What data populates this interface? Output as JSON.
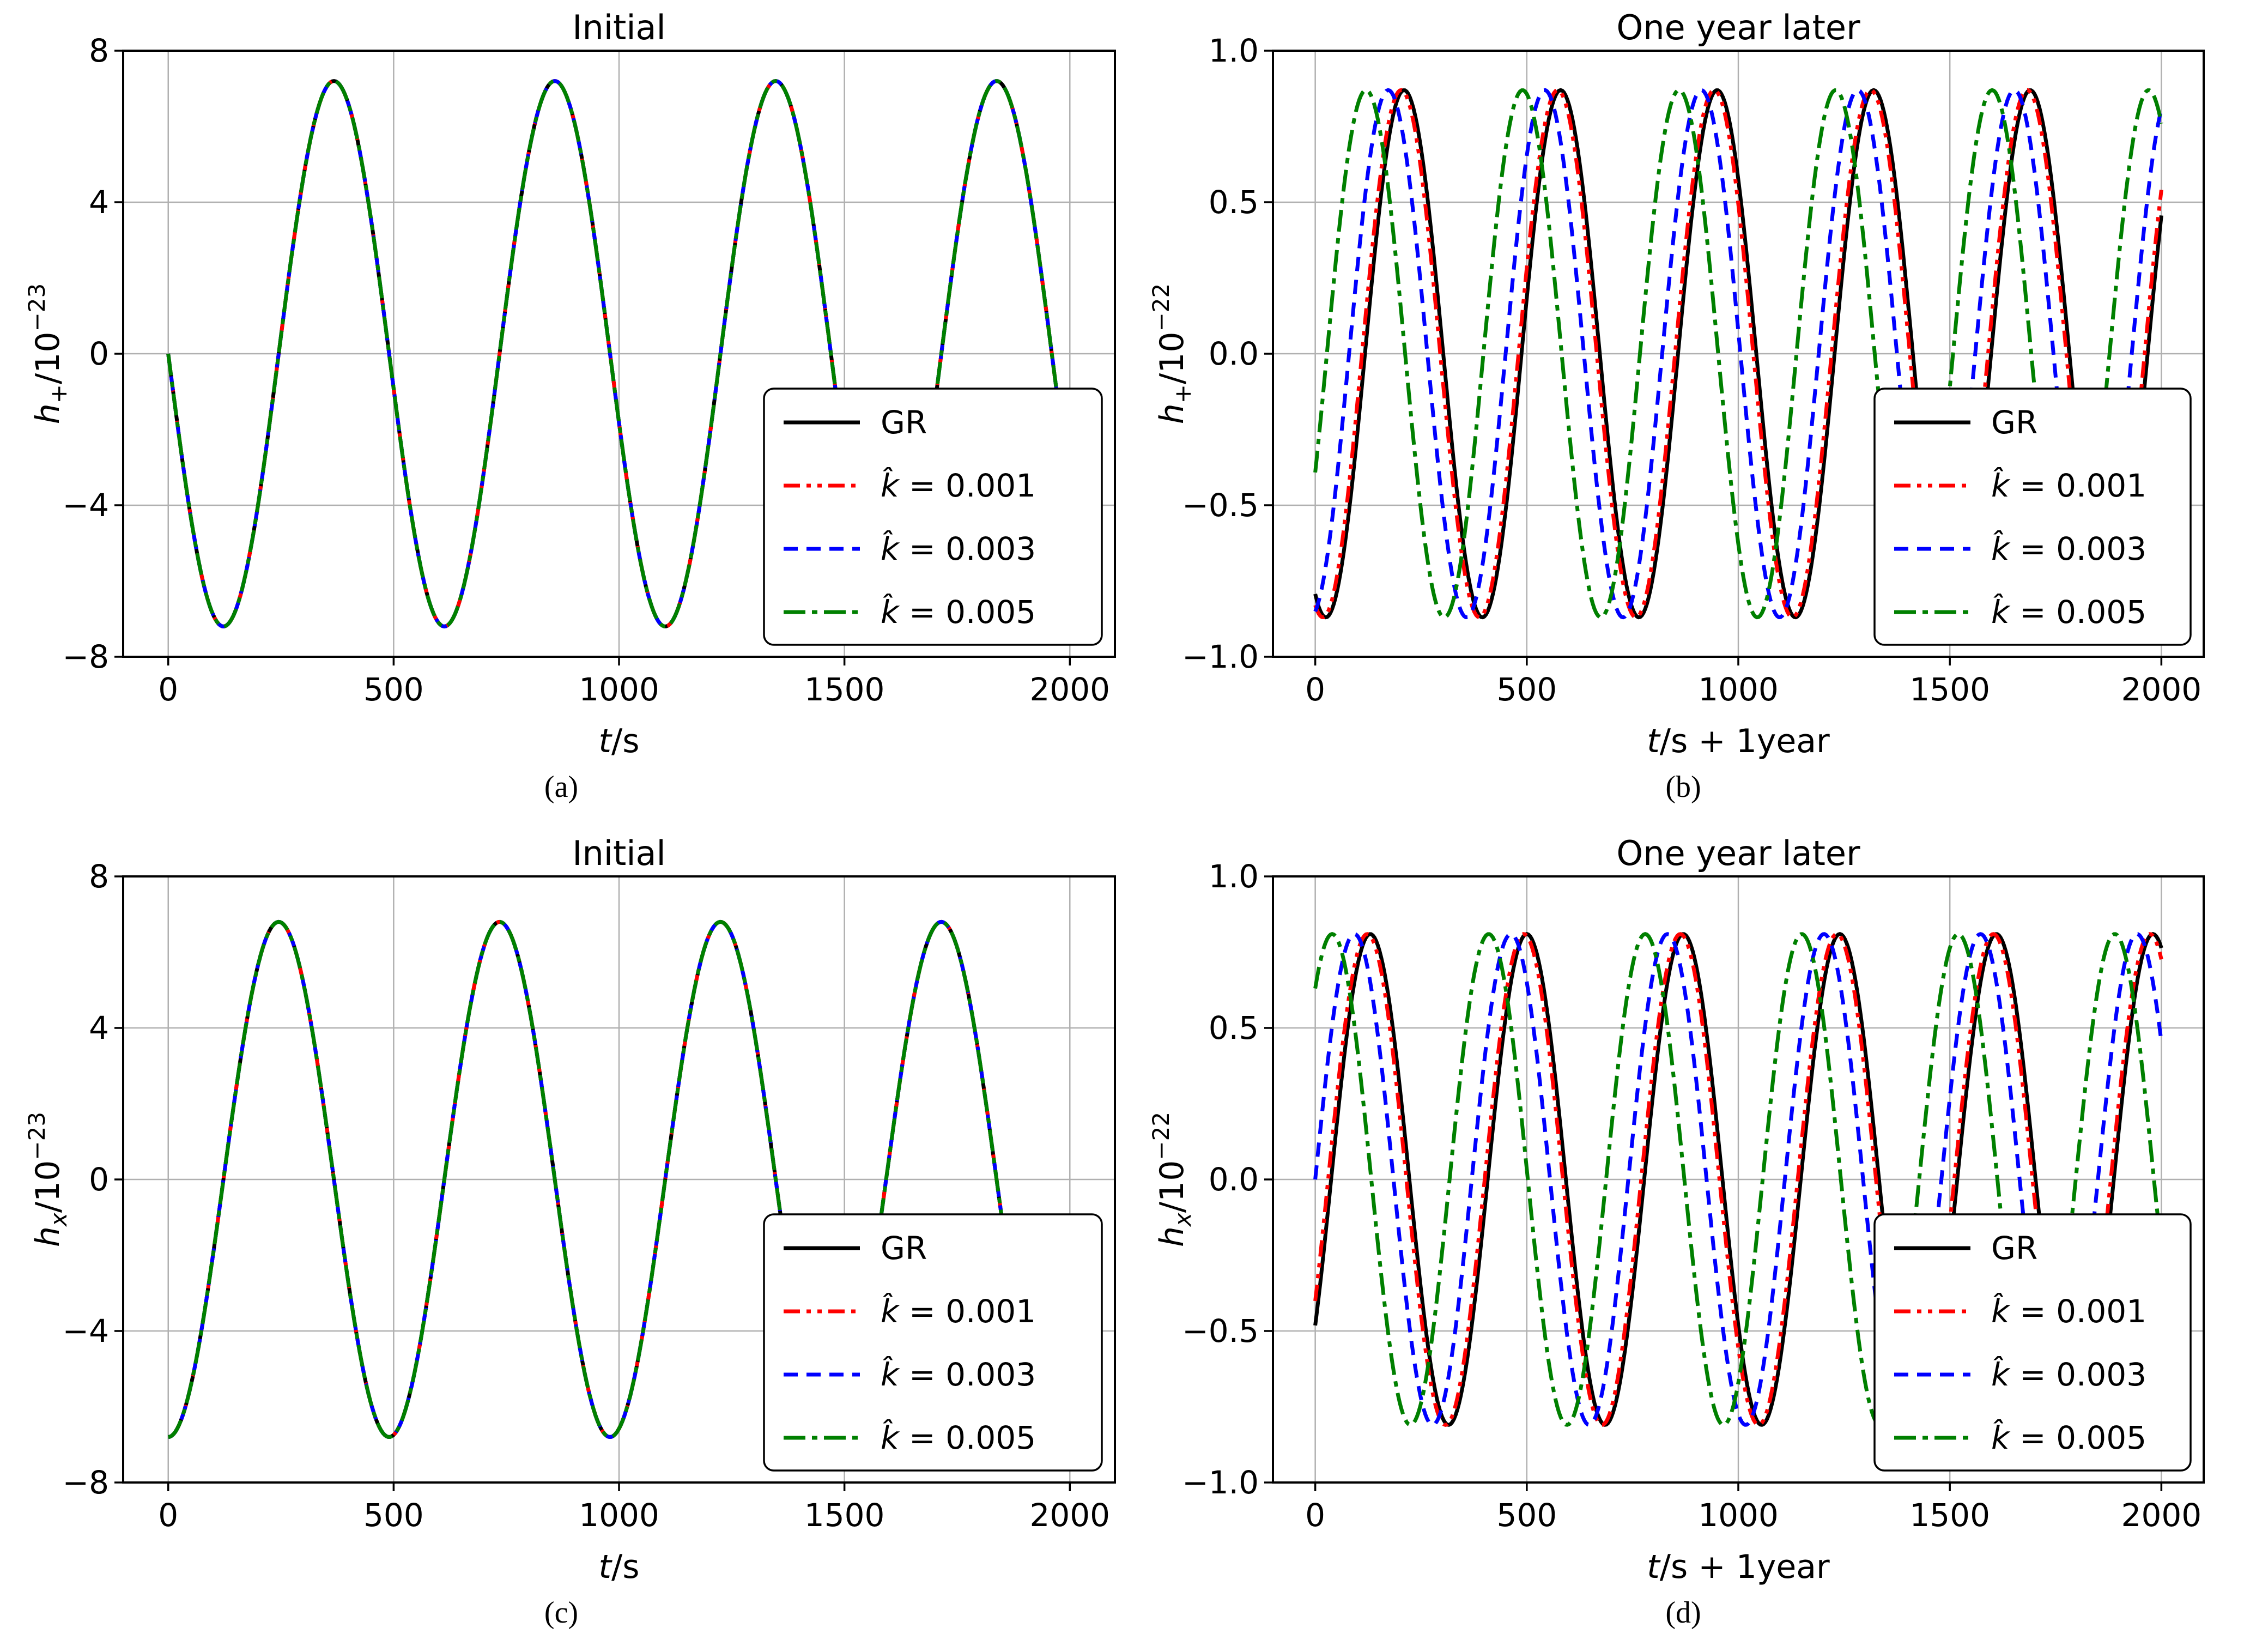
{
  "figure": {
    "background": "#ffffff",
    "text_color": "#000000",
    "grid_color": "#b0b0b0",
    "spine_color": "#000000",
    "legend_border_color": "#000000",
    "legend_background": "#ffffff"
  },
  "chart_data": [
    {
      "id": "a",
      "type": "line",
      "title": "Initial",
      "caption": "(a)",
      "xlabel": {
        "var": "t",
        "rest": "/s"
      },
      "ylabel": {
        "var": "h",
        "sub": "+",
        "rest": "/10",
        "sup": "−23"
      },
      "xlim": [
        -100,
        2100
      ],
      "ylim": [
        -8,
        8
      ],
      "xticks": [
        0,
        500,
        1000,
        1500,
        2000
      ],
      "xtick_labels": [
        "0",
        "500",
        "1000",
        "1500",
        "2000"
      ],
      "yticks": [
        8,
        4,
        0,
        -4,
        -8
      ],
      "ytick_labels": [
        "8",
        "4",
        "0",
        "−4",
        "−8"
      ],
      "grid": true,
      "legend_position": "lower right",
      "waveform": "h(t) = A·sin(2π(t−t0)/T), t ∈ [0, 2000] s; all four curves overlap",
      "series": [
        {
          "name": "GR",
          "color": "#000000",
          "linestyle": "solid",
          "dash": [],
          "amplitude": 7.2,
          "period_s": 490,
          "t0_s": 245
        },
        {
          "name": "k̂ = 0.001",
          "color": "#ff0000",
          "linestyle": "dash-dot-dot",
          "dash": [
            30,
            12,
            8,
            12,
            8,
            12
          ],
          "amplitude": 7.2,
          "period_s": 490,
          "t0_s": 245
        },
        {
          "name": "k̂ = 0.003",
          "color": "#0000ff",
          "linestyle": "dashed",
          "dash": [
            26,
            16
          ],
          "amplitude": 7.2,
          "period_s": 490,
          "t0_s": 245
        },
        {
          "name": "k̂ = 0.005",
          "color": "#008000",
          "linestyle": "dash-dot",
          "dash": [
            40,
            12,
            10,
            12
          ],
          "amplitude": 7.2,
          "period_s": 490,
          "t0_s": 245
        }
      ]
    },
    {
      "id": "b",
      "type": "line",
      "title": "One year later",
      "caption": "(b)",
      "xlabel": {
        "var": "t",
        "rest": "/s + 1year"
      },
      "ylabel": {
        "var": "h",
        "sub": "+",
        "rest": "/10",
        "sup": "−22"
      },
      "xlim": [
        -100,
        2100
      ],
      "ylim": [
        -1,
        1
      ],
      "xticks": [
        0,
        500,
        1000,
        1500,
        2000
      ],
      "xtick_labels": [
        "0",
        "500",
        "1000",
        "1500",
        "2000"
      ],
      "yticks": [
        1.0,
        0.5,
        0.0,
        -0.5,
        -1.0
      ],
      "ytick_labels": [
        "1.0",
        "0.5",
        "0.0",
        "−0.5",
        "−1.0"
      ],
      "grid": true,
      "legend_position": "lower right",
      "waveform": "h(t) = A·sin(2π(t−t0)/T), t ∈ [0, 2000] s; dephased curves, k̂ = 0.005 leads most",
      "series": [
        {
          "name": "GR",
          "color": "#000000",
          "linestyle": "solid",
          "dash": [],
          "amplitude": 0.87,
          "period_s": 370,
          "t0_s": 117.5
        },
        {
          "name": "k̂ = 0.001",
          "color": "#ff0000",
          "linestyle": "dash-dot-dot",
          "dash": [
            30,
            12,
            8,
            12,
            8,
            12
          ],
          "amplitude": 0.87,
          "period_s": 370,
          "t0_s": 110.5
        },
        {
          "name": "k̂ = 0.003",
          "color": "#0000ff",
          "linestyle": "dashed",
          "dash": [
            26,
            16
          ],
          "amplitude": 0.87,
          "period_s": 370,
          "t0_s": 80
        },
        {
          "name": "k̂ = 0.005",
          "color": "#008000",
          "linestyle": "dash-dot",
          "dash": [
            40,
            12,
            10,
            12
          ],
          "amplitude": 0.87,
          "period_s": 370,
          "t0_s": 27.5
        }
      ]
    },
    {
      "id": "c",
      "type": "line",
      "title": "Initial",
      "caption": "(c)",
      "xlabel": {
        "var": "t",
        "rest": "/s"
      },
      "ylabel": {
        "var": "h",
        "sub": "x",
        "rest": "/10",
        "sup": "−23"
      },
      "xlim": [
        -100,
        2100
      ],
      "ylim": [
        -8,
        8
      ],
      "xticks": [
        0,
        500,
        1000,
        1500,
        2000
      ],
      "xtick_labels": [
        "0",
        "500",
        "1000",
        "1500",
        "2000"
      ],
      "yticks": [
        8,
        4,
        0,
        -4,
        -8
      ],
      "ytick_labels": [
        "8",
        "4",
        "0",
        "−4",
        "−8"
      ],
      "grid": true,
      "legend_position": "lower right",
      "waveform": "h(t) = A·sin(2π(t−t0)/T) = −A·cos(2πt/T), t ∈ [0, 2000] s; all four curves overlap",
      "series": [
        {
          "name": "GR",
          "color": "#000000",
          "linestyle": "solid",
          "dash": [],
          "amplitude": 6.8,
          "period_s": 490,
          "t0_s": 122.5
        },
        {
          "name": "k̂ = 0.001",
          "color": "#ff0000",
          "linestyle": "dash-dot-dot",
          "dash": [
            30,
            12,
            8,
            12,
            8,
            12
          ],
          "amplitude": 6.8,
          "period_s": 490,
          "t0_s": 122.5
        },
        {
          "name": "k̂ = 0.003",
          "color": "#0000ff",
          "linestyle": "dashed",
          "dash": [
            26,
            16
          ],
          "amplitude": 6.8,
          "period_s": 490,
          "t0_s": 122.5
        },
        {
          "name": "k̂ = 0.005",
          "color": "#008000",
          "linestyle": "dash-dot",
          "dash": [
            40,
            12,
            10,
            12
          ],
          "amplitude": 6.8,
          "period_s": 490,
          "t0_s": 122.5
        }
      ]
    },
    {
      "id": "d",
      "type": "line",
      "title": "One year later",
      "caption": "(d)",
      "xlabel": {
        "var": "t",
        "rest": "/s + 1year"
      },
      "ylabel": {
        "var": "h",
        "sub": "x",
        "rest": "/10",
        "sup": "−22"
      },
      "xlim": [
        -100,
        2100
      ],
      "ylim": [
        -1,
        1
      ],
      "xticks": [
        0,
        500,
        1000,
        1500,
        2000
      ],
      "xtick_labels": [
        "0",
        "500",
        "1000",
        "1500",
        "2000"
      ],
      "yticks": [
        1.0,
        0.5,
        0.0,
        -0.5,
        -1.0
      ],
      "ytick_labels": [
        "1.0",
        "0.5",
        "0.0",
        "−0.5",
        "−1.0"
      ],
      "grid": true,
      "legend_position": "lower right",
      "waveform": "h(t) = A·sin(2π(t−t0)/T), t ∈ [0, 2000] s; dephased curves, k̂ = 0.005 leads most",
      "series": [
        {
          "name": "GR",
          "color": "#000000",
          "linestyle": "solid",
          "dash": [],
          "amplitude": 0.81,
          "period_s": 370,
          "t0_s": 37.5
        },
        {
          "name": "k̂ = 0.001",
          "color": "#ff0000",
          "linestyle": "dash-dot-dot",
          "dash": [
            30,
            12,
            8,
            12,
            8,
            12
          ],
          "amplitude": 0.81,
          "period_s": 370,
          "t0_s": 30.5
        },
        {
          "name": "k̂ = 0.003",
          "color": "#0000ff",
          "linestyle": "dashed",
          "dash": [
            26,
            16
          ],
          "amplitude": 0.81,
          "period_s": 370,
          "t0_s": 0
        },
        {
          "name": "k̂ = 0.005",
          "color": "#008000",
          "linestyle": "dash-dot",
          "dash": [
            40,
            12,
            10,
            12
          ],
          "amplitude": 0.81,
          "period_s": 370,
          "t0_s": -52.5
        }
      ]
    }
  ]
}
